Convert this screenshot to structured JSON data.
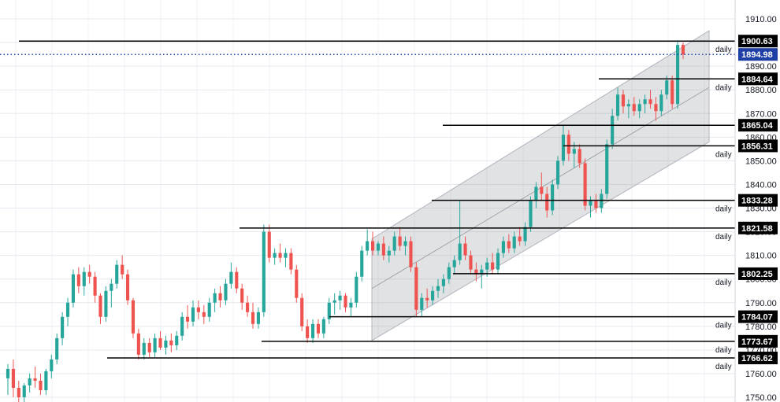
{
  "chart_data": {
    "type": "candlestick",
    "y_axis": {
      "range": [
        1748,
        1918
      ],
      "ticks": [
        1750,
        1760,
        1770,
        1780,
        1790,
        1800,
        1810,
        1820,
        1830,
        1840,
        1850,
        1860,
        1870,
        1880,
        1890,
        1900,
        1910
      ],
      "tick_labels": [
        "1750.00",
        "1760.00",
        "1770.00",
        "1780.00",
        "1790.00",
        "1800.00",
        "1810.00",
        "1820.00",
        "1830.00",
        "1840.00",
        "1850.00",
        "1860.00",
        "1870.00",
        "1880.00",
        "1890.00",
        "1900.00",
        "1910.00"
      ],
      "grid": true
    },
    "x_axis": {
      "grid": true
    },
    "current_price": {
      "value": 1894.98,
      "label": "1894.98",
      "color": "#1e3fa5"
    },
    "levels": [
      {
        "value": 1900.63,
        "label": "1900.63",
        "timeframe": "daily"
      },
      {
        "value": 1884.64,
        "label": "1884.64",
        "timeframe": "daily"
      },
      {
        "value": 1865.04,
        "label": "1865.04",
        "timeframe": ""
      },
      {
        "value": 1856.31,
        "label": "1856.31",
        "timeframe": "daily"
      },
      {
        "value": 1833.28,
        "label": "1833.28",
        "timeframe": "daily"
      },
      {
        "value": 1821.58,
        "label": "1821.58",
        "timeframe": "daily"
      },
      {
        "value": 1802.25,
        "label": "1802.25",
        "timeframe": "daily"
      },
      {
        "value": 1784.07,
        "label": "1784.07",
        "timeframe": "daily"
      },
      {
        "value": 1773.67,
        "label": "1773.67",
        "timeframe": "daily"
      },
      {
        "value": 1766.62,
        "label": "1766.62",
        "timeframe": "daily"
      }
    ],
    "channel": {
      "lower_start": 1774,
      "lower_end": 1858,
      "upper_start": 1817,
      "upper_end": 1905,
      "mid_start": 1796,
      "mid_end": 1881
    },
    "candles_ohlc": [
      [
        1758,
        1764,
        1751,
        1762
      ],
      [
        1762,
        1766,
        1750,
        1754
      ],
      [
        1754,
        1757,
        1748,
        1750
      ],
      [
        1750,
        1756,
        1748,
        1755
      ],
      [
        1755,
        1760,
        1752,
        1758
      ],
      [
        1758,
        1763,
        1754,
        1757
      ],
      [
        1757,
        1760,
        1751,
        1753
      ],
      [
        1753,
        1762,
        1751,
        1761
      ],
      [
        1761,
        1768,
        1758,
        1766
      ],
      [
        1766,
        1777,
        1764,
        1775
      ],
      [
        1775,
        1786,
        1772,
        1784
      ],
      [
        1784,
        1792,
        1780,
        1790
      ],
      [
        1790,
        1804,
        1788,
        1802
      ],
      [
        1802,
        1805,
        1794,
        1797
      ],
      [
        1797,
        1805,
        1793,
        1803
      ],
      [
        1803,
        1806,
        1798,
        1801
      ],
      [
        1801,
        1803,
        1790,
        1793
      ],
      [
        1793,
        1794,
        1781,
        1784
      ],
      [
        1784,
        1797,
        1782,
        1795
      ],
      [
        1795,
        1800,
        1788,
        1798
      ],
      [
        1798,
        1808,
        1796,
        1806
      ],
      [
        1806,
        1810,
        1800,
        1802
      ],
      [
        1802,
        1804,
        1789,
        1791
      ],
      [
        1791,
        1792,
        1775,
        1777
      ],
      [
        1777,
        1779,
        1766,
        1768
      ],
      [
        1768,
        1775,
        1766,
        1773
      ],
      [
        1773,
        1775,
        1767,
        1769
      ],
      [
        1769,
        1777,
        1767,
        1775
      ],
      [
        1775,
        1778,
        1770,
        1771
      ],
      [
        1771,
        1776,
        1768,
        1774
      ],
      [
        1774,
        1777,
        1769,
        1772
      ],
      [
        1772,
        1778,
        1770,
        1776
      ],
      [
        1776,
        1786,
        1774,
        1784
      ],
      [
        1784,
        1789,
        1779,
        1782
      ],
      [
        1782,
        1791,
        1780,
        1788
      ],
      [
        1788,
        1791,
        1783,
        1786
      ],
      [
        1786,
        1789,
        1781,
        1784
      ],
      [
        1784,
        1792,
        1782,
        1790
      ],
      [
        1790,
        1796,
        1786,
        1794
      ],
      [
        1794,
        1797,
        1788,
        1791
      ],
      [
        1791,
        1800,
        1789,
        1798
      ],
      [
        1798,
        1807,
        1796,
        1803
      ],
      [
        1803,
        1805,
        1794,
        1796
      ],
      [
        1796,
        1798,
        1787,
        1790
      ],
      [
        1790,
        1793,
        1784,
        1786
      ],
      [
        1786,
        1790,
        1779,
        1781
      ],
      [
        1781,
        1788,
        1779,
        1786
      ],
      [
        1786,
        1823,
        1784,
        1820
      ],
      [
        1820,
        1823,
        1807,
        1809
      ],
      [
        1809,
        1813,
        1806,
        1811
      ],
      [
        1811,
        1815,
        1807,
        1809
      ],
      [
        1809,
        1813,
        1805,
        1811
      ],
      [
        1811,
        1813,
        1802,
        1804
      ],
      [
        1804,
        1806,
        1790,
        1792
      ],
      [
        1792,
        1794,
        1778,
        1780
      ],
      [
        1780,
        1783,
        1773,
        1775
      ],
      [
        1775,
        1783,
        1773,
        1781
      ],
      [
        1781,
        1783,
        1775,
        1777
      ],
      [
        1777,
        1784,
        1775,
        1783
      ],
      [
        1783,
        1792,
        1781,
        1790
      ],
      [
        1790,
        1794,
        1785,
        1791
      ],
      [
        1791,
        1795,
        1787,
        1793
      ],
      [
        1793,
        1794,
        1786,
        1788
      ],
      [
        1788,
        1792,
        1784,
        1790
      ],
      [
        1790,
        1803,
        1788,
        1801
      ],
      [
        1801,
        1814,
        1799,
        1812
      ],
      [
        1812,
        1821,
        1810,
        1816
      ],
      [
        1816,
        1820,
        1810,
        1812
      ],
      [
        1812,
        1816,
        1810,
        1815
      ],
      [
        1815,
        1818,
        1808,
        1810
      ],
      [
        1810,
        1814,
        1807,
        1812
      ],
      [
        1812,
        1820,
        1810,
        1818
      ],
      [
        1818,
        1822,
        1812,
        1814
      ],
      [
        1814,
        1818,
        1810,
        1816
      ],
      [
        1816,
        1818,
        1803,
        1805
      ],
      [
        1805,
        1807,
        1784,
        1787
      ],
      [
        1787,
        1794,
        1784,
        1792
      ],
      [
        1792,
        1796,
        1788,
        1791
      ],
      [
        1791,
        1797,
        1789,
        1795
      ],
      [
        1795,
        1800,
        1792,
        1797
      ],
      [
        1797,
        1802,
        1794,
        1800
      ],
      [
        1800,
        1807,
        1798,
        1805
      ],
      [
        1805,
        1810,
        1802,
        1808
      ],
      [
        1808,
        1833,
        1806,
        1815
      ],
      [
        1815,
        1818,
        1808,
        1810
      ],
      [
        1810,
        1812,
        1802,
        1804
      ],
      [
        1804,
        1807,
        1799,
        1802
      ],
      [
        1802,
        1806,
        1796,
        1804
      ],
      [
        1804,
        1809,
        1801,
        1807
      ],
      [
        1807,
        1811,
        1802,
        1804
      ],
      [
        1804,
        1813,
        1802,
        1811
      ],
      [
        1811,
        1818,
        1809,
        1816
      ],
      [
        1816,
        1819,
        1811,
        1813
      ],
      [
        1813,
        1820,
        1811,
        1818
      ],
      [
        1818,
        1822,
        1814,
        1816
      ],
      [
        1816,
        1824,
        1814,
        1822
      ],
      [
        1822,
        1835,
        1820,
        1833
      ],
      [
        1833,
        1841,
        1830,
        1839
      ],
      [
        1839,
        1845,
        1833,
        1836
      ],
      [
        1836,
        1839,
        1826,
        1829
      ],
      [
        1829,
        1842,
        1827,
        1840
      ],
      [
        1840,
        1852,
        1838,
        1850
      ],
      [
        1850,
        1865,
        1848,
        1861
      ],
      [
        1861,
        1863,
        1850,
        1853
      ],
      [
        1853,
        1858,
        1847,
        1855
      ],
      [
        1855,
        1857,
        1847,
        1849
      ],
      [
        1849,
        1851,
        1829,
        1831
      ],
      [
        1831,
        1835,
        1826,
        1833
      ],
      [
        1833,
        1836,
        1828,
        1830
      ],
      [
        1830,
        1838,
        1828,
        1836
      ],
      [
        1836,
        1859,
        1834,
        1857
      ],
      [
        1857,
        1872,
        1855,
        1869
      ],
      [
        1869,
        1881,
        1867,
        1878
      ],
      [
        1878,
        1880,
        1870,
        1873
      ],
      [
        1873,
        1876,
        1868,
        1874
      ],
      [
        1874,
        1877,
        1869,
        1871
      ],
      [
        1871,
        1876,
        1868,
        1874
      ],
      [
        1874,
        1878,
        1870,
        1876
      ],
      [
        1876,
        1880,
        1872,
        1874
      ],
      [
        1874,
        1877,
        1867,
        1871
      ],
      [
        1871,
        1880,
        1869,
        1878
      ],
      [
        1878,
        1886,
        1876,
        1884
      ],
      [
        1884,
        1886,
        1872,
        1874
      ],
      [
        1874,
        1901,
        1872,
        1899
      ],
      [
        1899,
        1900,
        1893,
        1895
      ]
    ]
  }
}
